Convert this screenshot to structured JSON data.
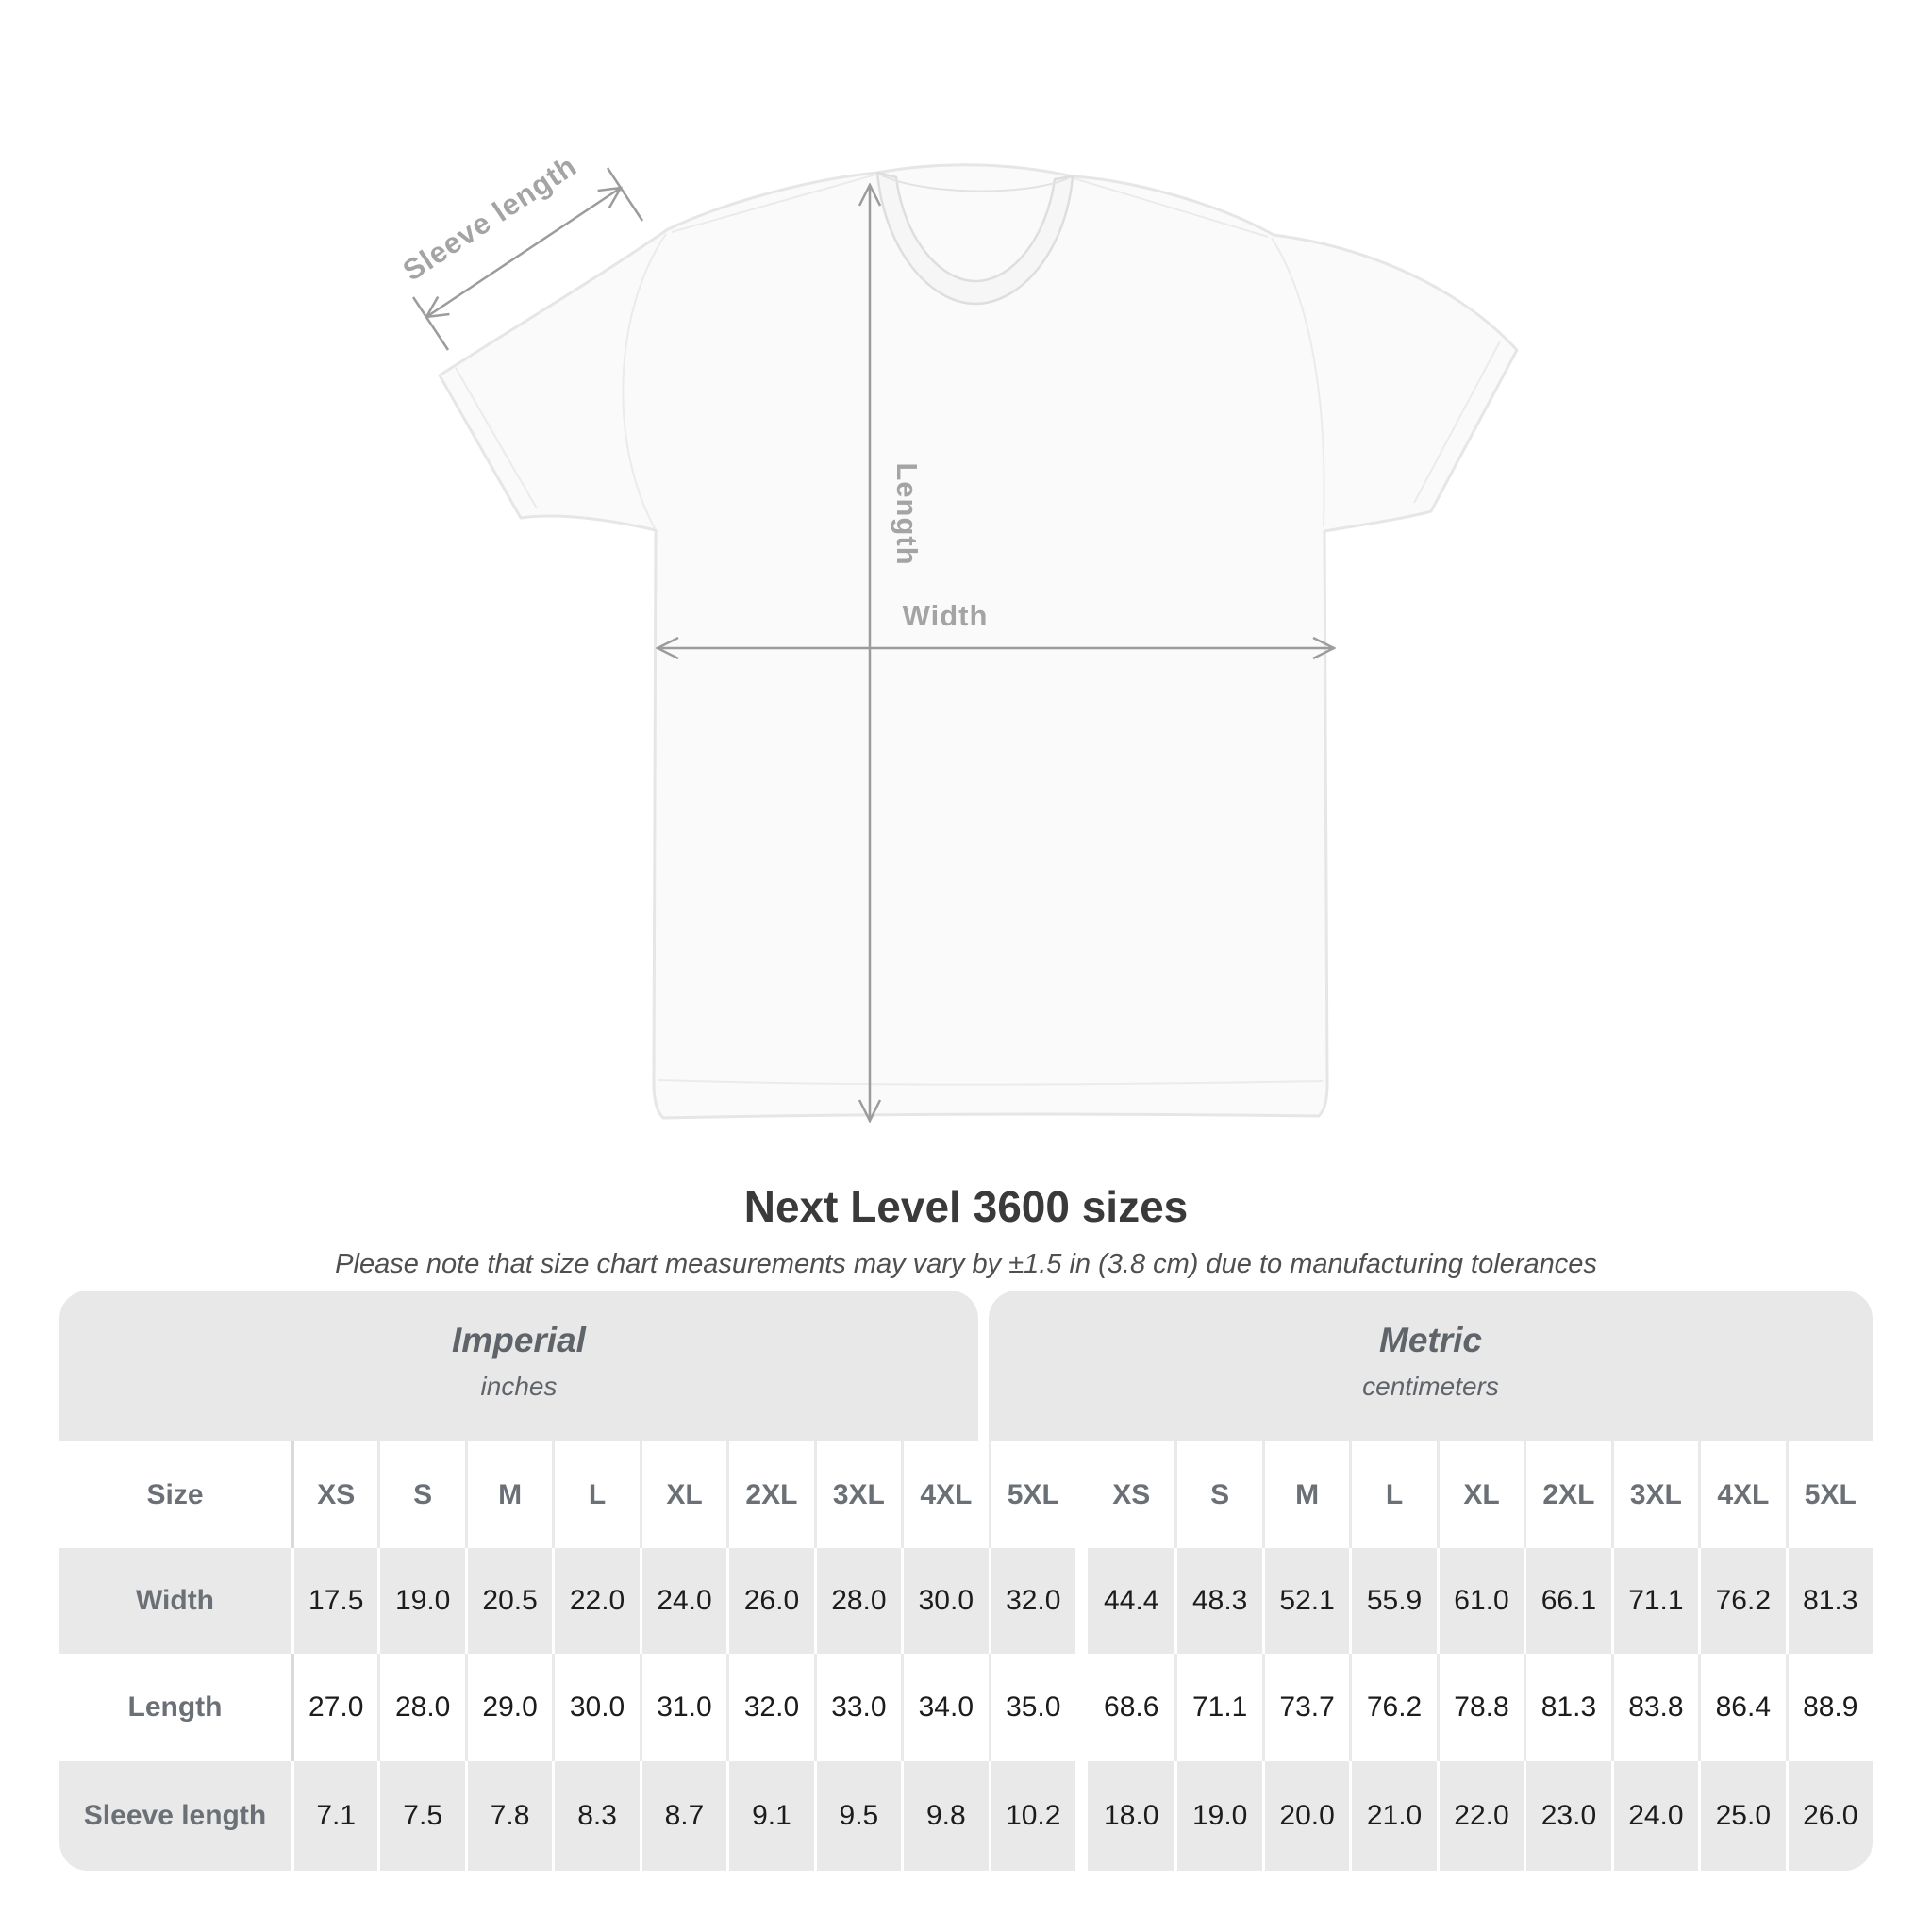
{
  "title": "Next Level 3600 sizes",
  "subtitle": "Please note that size chart measurements may vary by ±1.5 in (3.8 cm) due to manufacturing tolerances",
  "diagram": {
    "sleeve_label": "Sleeve length",
    "length_label": "Length",
    "width_label": "Width"
  },
  "colors": {
    "arrow_gray": "#9c9c9c",
    "diagram_label_gray": "#a4a4a4",
    "band_gray": "#e8e8e8",
    "row_stripe_gray": "#e9e9e9",
    "header_text_gray": "#6a7076",
    "value_text": "#1c1c1c"
  },
  "table": {
    "sections": [
      {
        "name": "Imperial",
        "unit": "inches"
      },
      {
        "name": "Metric",
        "unit": "centimeters"
      }
    ],
    "size_label": "Size",
    "sizes": [
      "XS",
      "S",
      "M",
      "L",
      "XL",
      "2XL",
      "3XL",
      "4XL",
      "5XL"
    ],
    "rows": [
      {
        "label": "Width",
        "imperial": [
          "17.5",
          "19.0",
          "20.5",
          "22.0",
          "24.0",
          "26.0",
          "28.0",
          "30.0",
          "32.0"
        ],
        "metric": [
          "44.4",
          "48.3",
          "52.1",
          "55.9",
          "61.0",
          "66.1",
          "71.1",
          "76.2",
          "81.3"
        ]
      },
      {
        "label": "Length",
        "imperial": [
          "27.0",
          "28.0",
          "29.0",
          "30.0",
          "31.0",
          "32.0",
          "33.0",
          "34.0",
          "35.0"
        ],
        "metric": [
          "68.6",
          "71.1",
          "73.7",
          "76.2",
          "78.8",
          "81.3",
          "83.8",
          "86.4",
          "88.9"
        ]
      },
      {
        "label": "Sleeve length",
        "imperial": [
          "7.1",
          "7.5",
          "7.8",
          "8.3",
          "8.7",
          "9.1",
          "9.5",
          "9.8",
          "10.2"
        ],
        "metric": [
          "18.0",
          "19.0",
          "20.0",
          "21.0",
          "22.0",
          "23.0",
          "24.0",
          "25.0",
          "26.0"
        ]
      }
    ]
  },
  "chart_data": {
    "type": "table",
    "title": "Next Level 3600 sizes",
    "columns": [
      "XS",
      "S",
      "M",
      "L",
      "XL",
      "2XL",
      "3XL",
      "4XL",
      "5XL"
    ],
    "units": [
      "inches",
      "centimeters"
    ],
    "rows": [
      {
        "label": "Width",
        "inches": [
          17.5,
          19.0,
          20.5,
          22.0,
          24.0,
          26.0,
          28.0,
          30.0,
          32.0
        ],
        "centimeters": [
          44.4,
          48.3,
          52.1,
          55.9,
          61.0,
          66.1,
          71.1,
          76.2,
          81.3
        ]
      },
      {
        "label": "Length",
        "inches": [
          27.0,
          28.0,
          29.0,
          30.0,
          31.0,
          32.0,
          33.0,
          34.0,
          35.0
        ],
        "centimeters": [
          68.6,
          71.1,
          73.7,
          76.2,
          78.8,
          81.3,
          83.8,
          86.4,
          88.9
        ]
      },
      {
        "label": "Sleeve length",
        "inches": [
          7.1,
          7.5,
          7.8,
          8.3,
          8.7,
          9.1,
          9.5,
          9.8,
          10.2
        ],
        "centimeters": [
          18.0,
          19.0,
          20.0,
          21.0,
          22.0,
          23.0,
          24.0,
          25.0,
          26.0
        ]
      }
    ]
  }
}
